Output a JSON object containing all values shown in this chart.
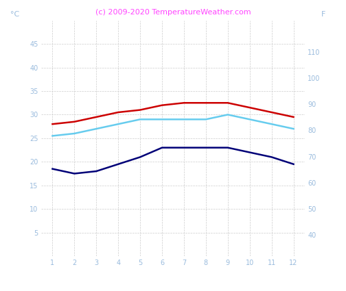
{
  "months": [
    1,
    2,
    3,
    4,
    5,
    6,
    7,
    8,
    9,
    10,
    11,
    12
  ],
  "red_line": [
    28,
    28.5,
    29.5,
    30.5,
    31,
    32,
    32.5,
    32.5,
    32.5,
    31.5,
    30.5,
    29.5
  ],
  "cyan_line": [
    25.5,
    26,
    27,
    28,
    29,
    29,
    29,
    29,
    30,
    29,
    28,
    27
  ],
  "blue_line": [
    18.5,
    17.5,
    18,
    19.5,
    21,
    23,
    23,
    23,
    23,
    22,
    21,
    19.5
  ],
  "title": "(c) 2009-2020 TemperatureWeather.com",
  "title_color": "#ff44ff",
  "ylabel_left": "°C",
  "ylabel_right": "F",
  "ylim_left": [
    0,
    50
  ],
  "ylim_right": [
    32,
    122
  ],
  "yticks_left": [
    5,
    10,
    15,
    20,
    25,
    30,
    35,
    40,
    45
  ],
  "yticks_right": [
    40,
    50,
    60,
    70,
    80,
    90,
    100,
    110
  ],
  "background_color": "#ffffff",
  "grid_color": "#cccccc",
  "axis_label_color": "#99bbdd",
  "tick_label_color": "#99bbdd",
  "red_color": "#cc0000",
  "cyan_color": "#66ccee",
  "blue_color": "#000077",
  "line_width": 1.8
}
